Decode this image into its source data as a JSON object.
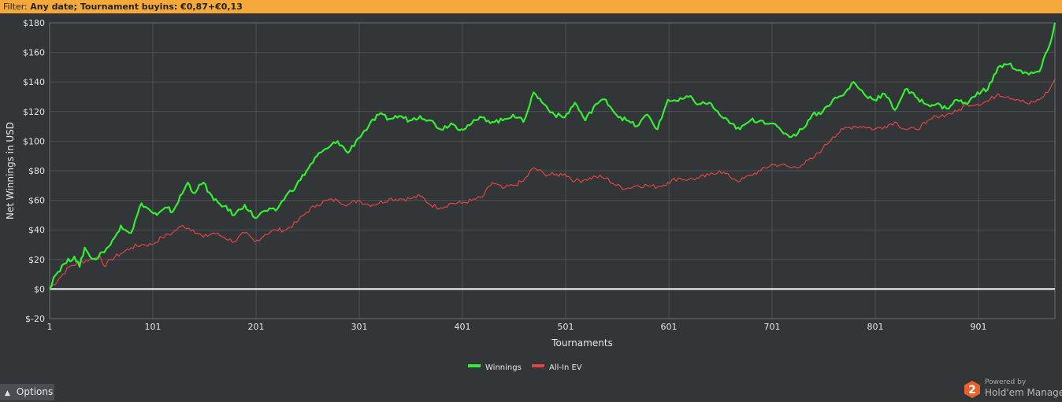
{
  "filter": {
    "label": "Filter:",
    "value": "Any date; Tournament buyins: €0,87+€0,13"
  },
  "options": {
    "label": "Options",
    "chevron_icon": "chevron-up-icon"
  },
  "branding": {
    "powered_by": "Powered by",
    "product": "Hold'em Manager",
    "badge": "2",
    "logo_color": "#e8622c"
  },
  "colors": {
    "background": "#333638",
    "filter_bar": "#f5a93a",
    "winnings": "#33ee33",
    "allin_ev": "#e04444",
    "zero_line": "#ffffff",
    "grid": "#4d5154"
  },
  "chart_data": {
    "type": "line",
    "title": "",
    "xlabel": "Tournaments",
    "ylabel": "Net Winnings in USD",
    "xlim": [
      1,
      975
    ],
    "ylim": [
      -20,
      180
    ],
    "x_ticks": [
      1,
      101,
      201,
      301,
      401,
      501,
      601,
      701,
      801,
      901
    ],
    "x_tick_labels": [
      "1",
      "101",
      "201",
      "301",
      "401",
      "501",
      "601",
      "701",
      "801",
      "901"
    ],
    "y_ticks": [
      -20,
      0,
      20,
      40,
      60,
      80,
      100,
      120,
      140,
      160,
      180
    ],
    "y_tick_labels": [
      "$-20",
      "$0",
      "$20",
      "$40",
      "$60",
      "$80",
      "$100",
      "$120",
      "$140",
      "$160",
      "$180"
    ],
    "grid": true,
    "legend_position": "bottom-center",
    "series": [
      {
        "name": "Winnings",
        "color": "#33ee33",
        "x": [
          1,
          5,
          15,
          25,
          30,
          35,
          40,
          46,
          52,
          60,
          65,
          70,
          80,
          90,
          100,
          105,
          115,
          120,
          135,
          140,
          150,
          160,
          170,
          180,
          190,
          200,
          210,
          220,
          230,
          240,
          250,
          260,
          270,
          280,
          290,
          300,
          310,
          320,
          330,
          340,
          350,
          360,
          370,
          380,
          390,
          400,
          410,
          420,
          430,
          440,
          450,
          460,
          470,
          480,
          490,
          500,
          510,
          520,
          530,
          540,
          550,
          560,
          570,
          580,
          590,
          600,
          610,
          620,
          630,
          640,
          650,
          660,
          670,
          680,
          690,
          700,
          710,
          720,
          730,
          740,
          750,
          760,
          770,
          780,
          790,
          800,
          810,
          820,
          830,
          840,
          850,
          860,
          870,
          880,
          890,
          900,
          910,
          920,
          930,
          940,
          950,
          960,
          970,
          975
        ],
        "y": [
          0,
          8,
          17,
          22,
          15,
          28,
          22,
          20,
          25,
          30,
          36,
          43,
          38,
          58,
          52,
          50,
          55,
          52,
          72,
          65,
          72,
          60,
          56,
          50,
          57,
          48,
          53,
          53,
          63,
          70,
          80,
          90,
          95,
          100,
          92,
          102,
          110,
          118,
          115,
          117,
          114,
          117,
          114,
          108,
          112,
          108,
          112,
          116,
          113,
          114,
          118,
          113,
          133,
          125,
          118,
          116,
          126,
          114,
          125,
          128,
          118,
          114,
          110,
          118,
          108,
          128,
          127,
          130,
          125,
          126,
          118,
          112,
          108,
          114,
          114,
          112,
          107,
          103,
          108,
          118,
          120,
          128,
          131,
          140,
          132,
          128,
          132,
          121,
          135,
          130,
          125,
          125,
          122,
          128,
          125,
          133,
          135,
          150,
          152,
          148,
          145,
          147,
          165,
          180
        ]
      },
      {
        "name": "All-In EV",
        "color": "#e04444",
        "x": [
          1,
          10,
          20,
          30,
          40,
          50,
          55,
          60,
          70,
          80,
          90,
          100,
          110,
          120,
          130,
          140,
          150,
          160,
          170,
          180,
          190,
          200,
          210,
          220,
          230,
          240,
          250,
          260,
          270,
          280,
          290,
          300,
          310,
          320,
          330,
          340,
          350,
          360,
          370,
          380,
          390,
          400,
          410,
          420,
          430,
          440,
          450,
          460,
          470,
          480,
          490,
          500,
          510,
          520,
          530,
          540,
          550,
          560,
          570,
          580,
          590,
          600,
          610,
          620,
          630,
          640,
          650,
          660,
          670,
          680,
          690,
          700,
          710,
          720,
          730,
          740,
          750,
          760,
          770,
          780,
          790,
          800,
          810,
          820,
          830,
          840,
          850,
          860,
          870,
          880,
          890,
          900,
          910,
          920,
          930,
          940,
          950,
          960,
          970,
          975
        ],
        "y": [
          0,
          7,
          15,
          18,
          20,
          22,
          15,
          20,
          24,
          28,
          30,
          30,
          35,
          38,
          43,
          40,
          35,
          38,
          35,
          32,
          38,
          32,
          37,
          40,
          40,
          45,
          52,
          57,
          60,
          60,
          57,
          60,
          57,
          58,
          61,
          61,
          61,
          63,
          57,
          55,
          58,
          58,
          60,
          62,
          72,
          68,
          70,
          73,
          82,
          78,
          77,
          78,
          73,
          74,
          76,
          75,
          70,
          68,
          70,
          70,
          69,
          72,
          75,
          74,
          75,
          77,
          80,
          76,
          73,
          77,
          80,
          84,
          84,
          82,
          84,
          88,
          95,
          103,
          108,
          110,
          110,
          108,
          110,
          113,
          108,
          108,
          112,
          117,
          118,
          120,
          125,
          125,
          127,
          132,
          130,
          128,
          125,
          128,
          135,
          142
        ]
      }
    ]
  }
}
